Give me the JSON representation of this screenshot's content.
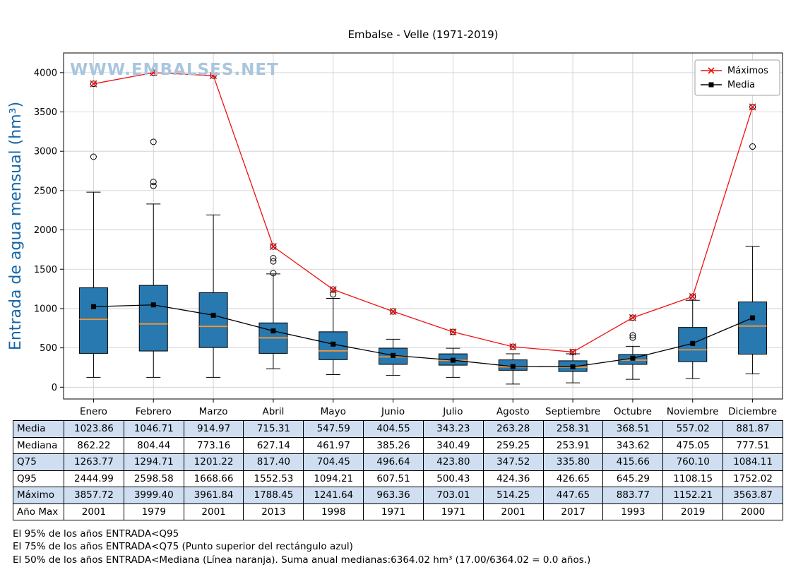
{
  "chart_data": {
    "type": "boxplot",
    "title": "Embalse - Velle (1971-2019)",
    "watermark": "WWW.EMBALSES.NET",
    "ylabel": "Entrada de agua mensual (hm³)",
    "xlabel": "",
    "categories": [
      "Enero",
      "Febrero",
      "Marzo",
      "Abril",
      "Mayo",
      "Junio",
      "Julio",
      "Agosto",
      "Septiembre",
      "Octubre",
      "Noviembre",
      "Diciembre"
    ],
    "ylim": [
      -150,
      4250
    ],
    "yticks": [
      0,
      500,
      1000,
      1500,
      2000,
      2500,
      3000,
      3500,
      4000
    ],
    "grid": true,
    "legend_position": "top-right",
    "legend": [
      {
        "label": "Máximos",
        "marker": "x"
      },
      {
        "label": "Media",
        "marker": "square"
      }
    ],
    "box": {
      "q25": [
        430,
        460,
        505,
        430,
        350,
        290,
        280,
        215,
        200,
        290,
        325,
        420
      ],
      "median": [
        862.22,
        804.44,
        773.16,
        627.14,
        461.97,
        385.26,
        340.49,
        259.25,
        253.91,
        343.62,
        475.05,
        777.51
      ],
      "q75": [
        1263.77,
        1294.71,
        1201.22,
        817.4,
        704.45,
        496.64,
        423.8,
        347.52,
        335.8,
        415.66,
        760.1,
        1084.11
      ],
      "whisker_low": [
        125,
        125,
        125,
        235,
        160,
        150,
        125,
        40,
        55,
        100,
        110,
        170
      ],
      "whisker_high": [
        2480,
        2330,
        2190,
        1440,
        1130,
        610,
        495,
        425,
        425,
        520,
        1105,
        1790
      ],
      "outliers": [
        [
          2930
        ],
        [
          2560,
          2610,
          3120
        ],
        [],
        [
          1450,
          1600,
          1640
        ],
        [
          1180
        ],
        [],
        [],
        [],
        [],
        [
          630,
          660
        ],
        [],
        [
          3060
        ]
      ]
    },
    "series": [
      {
        "name": "Máximos",
        "values": [
          3857.72,
          3999.4,
          3961.84,
          1788.45,
          1241.64,
          963.36,
          703.01,
          514.25,
          447.65,
          883.77,
          1152.21,
          3563.87
        ]
      },
      {
        "name": "Media",
        "values": [
          1023.86,
          1046.71,
          914.97,
          715.31,
          547.59,
          404.55,
          343.23,
          263.28,
          258.31,
          368.51,
          557.02,
          881.87
        ]
      }
    ],
    "colors": {
      "box_fill": "#2779b0",
      "box_edge": "#000000",
      "median": "#ff9530",
      "maximos": "#ee1111",
      "media": "#000000",
      "grid": "#cccccc",
      "ylabel": "#1565a8",
      "watermark": "#a9c6de",
      "table_band": "#cfdff1"
    }
  },
  "table": {
    "row_headers": [
      "Media",
      "Mediana",
      "Q75",
      "Q95",
      "Máximo",
      "Año Max"
    ],
    "columns": [
      "Enero",
      "Febrero",
      "Marzo",
      "Abril",
      "Mayo",
      "Junio",
      "Julio",
      "Agosto",
      "Septiembre",
      "Octubre",
      "Noviembre",
      "Diciembre"
    ],
    "rows": [
      [
        "1023.86",
        "1046.71",
        "914.97",
        "715.31",
        "547.59",
        "404.55",
        "343.23",
        "263.28",
        "258.31",
        "368.51",
        "557.02",
        "881.87"
      ],
      [
        "862.22",
        "804.44",
        "773.16",
        "627.14",
        "461.97",
        "385.26",
        "340.49",
        "259.25",
        "253.91",
        "343.62",
        "475.05",
        "777.51"
      ],
      [
        "1263.77",
        "1294.71",
        "1201.22",
        "817.40",
        "704.45",
        "496.64",
        "423.80",
        "347.52",
        "335.80",
        "415.66",
        "760.10",
        "1084.11"
      ],
      [
        "2444.99",
        "2598.58",
        "1668.66",
        "1552.53",
        "1094.21",
        "607.51",
        "500.43",
        "424.36",
        "426.65",
        "645.29",
        "1108.15",
        "1752.02"
      ],
      [
        "3857.72",
        "3999.40",
        "3961.84",
        "1788.45",
        "1241.64",
        "963.36",
        "703.01",
        "514.25",
        "447.65",
        "883.77",
        "1152.21",
        "3563.87"
      ],
      [
        "2001",
        "1979",
        "2001",
        "2013",
        "1998",
        "1971",
        "1971",
        "2001",
        "2017",
        "1993",
        "2019",
        "2000"
      ]
    ]
  },
  "footnotes": [
    "El 95% de los años ENTRADA<Q95",
    "El 75% de los años ENTRADA<Q75 (Punto superior del rectángulo azul)",
    "El 50% de los años ENTRADA<Mediana (Línea naranja). Suma anual medianas:6364.02 hm³ (17.00/6364.02 = 0.0 años.)"
  ]
}
